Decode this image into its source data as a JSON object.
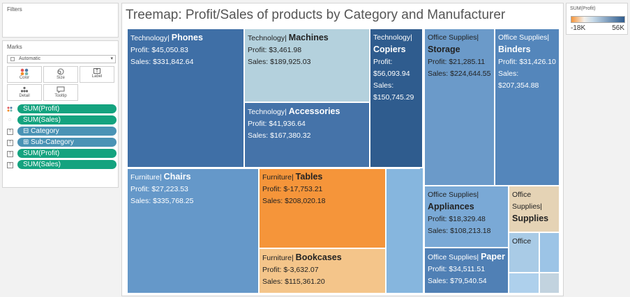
{
  "filters": {
    "title": "Filters"
  },
  "marks": {
    "title": "Marks",
    "mark_type": "Automatic",
    "buttons": {
      "color": "Color",
      "size": "Size",
      "label": "Label",
      "detail": "Detail",
      "tooltip": "Tooltip"
    },
    "label_button_glyph": "T",
    "pills": [
      {
        "label": "SUM(Profit)",
        "style": "green",
        "icon": "color-dots-icon"
      },
      {
        "label": "SUM(Sales)",
        "style": "green",
        "icon": "size-icon"
      },
      {
        "label": "⊟ Category",
        "style": "blue",
        "icon": "label-icon"
      },
      {
        "label": "⊞ Sub-Category",
        "style": "blue",
        "icon": "label-icon"
      },
      {
        "label": "SUM(Profit)",
        "style": "green",
        "icon": "label-icon"
      },
      {
        "label": "SUM(Sales)",
        "style": "green",
        "icon": "label-icon"
      }
    ]
  },
  "chart": {
    "title": "Treemap: Profit/Sales of products by Category and Manufacturer",
    "tiles": [
      {
        "category": "Technology|",
        "subcategory": "Phones",
        "profit": "Profit: $45,050.83",
        "sales": "Sales: $331,842.64",
        "color": "#3f6fa6",
        "text": "light",
        "layout": "inline"
      },
      {
        "category": "Technology|",
        "subcategory": "Machines",
        "profit": "Profit: $3,461.98",
        "sales": "Sales: $189,925.03",
        "color": "#b4d1dd",
        "text": "dark",
        "layout": "inline"
      },
      {
        "category": "Technology|",
        "subcategory": "Accessories",
        "profit": "Profit: $41,936.64",
        "sales": "Sales: $167,380.32",
        "color": "#4573a9",
        "text": "light",
        "layout": "inline"
      },
      {
        "category": "Technology|",
        "subcategory": "Copiers",
        "profit": "Profit:",
        "profit2": "$56,093.94",
        "sales": "Sales:",
        "sales2": "$150,745.29",
        "color": "#2f5c8e",
        "text": "light",
        "layout": "stacked"
      },
      {
        "category": "Office Supplies|",
        "subcategory": "Storage",
        "profit": "Profit: $21,285.11",
        "sales": "Sales: $224,644.55",
        "color": "#6b9ac9",
        "text": "dark",
        "layout": "stacked2"
      },
      {
        "category": "Office Supplies|",
        "subcategory": "Binders",
        "profit": "Profit: $31,426.10",
        "sales": "Sales:",
        "sales2": "$207,354.88",
        "color": "#5486bb",
        "text": "light",
        "layout": "stacked2"
      },
      {
        "category": "Furniture|",
        "subcategory": "Chairs",
        "profit": "Profit: $27,223.53",
        "sales": "Sales: $335,768.25",
        "color": "#6598c9",
        "text": "light",
        "layout": "inline"
      },
      {
        "category": "Furniture|",
        "subcategory": "Tables",
        "profit": "Profit: $-17,753.21",
        "sales": "Sales: $208,020.18",
        "color": "#f5953a",
        "text": "dark",
        "layout": "inline"
      },
      {
        "category": "Furniture|",
        "subcategory": "Bookcases",
        "profit": "Profit: $-3,632.07",
        "sales": "Sales: $115,361.20",
        "color": "#f4c58a",
        "text": "dark",
        "layout": "inline"
      },
      {
        "category": "",
        "subcategory": "",
        "color": "#86b6de",
        "text": "dark",
        "layout": "none"
      },
      {
        "category": "Office Supplies|",
        "subcategory": "Appliances",
        "profit": "Profit: $18,329.48",
        "sales": "Sales: $108,213.18",
        "color": "#7aa9d6",
        "text": "dark",
        "layout": "stacked2"
      },
      {
        "category": "Office",
        "subcategory": "Supplies",
        "category2": "Supplies|",
        "color": "#e5d3b5",
        "text": "dark",
        "layout": "supplies"
      },
      {
        "category": "Office",
        "subcategory": "",
        "color": "#a9cbe6",
        "text": "dark",
        "layout": "office"
      },
      {
        "category": "",
        "subcategory": "",
        "color": "#9cc4e6",
        "text": "dark",
        "layout": "none"
      },
      {
        "category": "Office Supplies|",
        "subcategory": "Paper",
        "profit": "Profit: $34,511.51",
        "sales": "Sales: $79,540.54",
        "color": "#5080b5",
        "text": "light",
        "layout": "inline"
      },
      {
        "category": "",
        "subcategory": "",
        "color": "#aed0ec",
        "text": "dark",
        "layout": "none"
      },
      {
        "category": "",
        "subcategory": "",
        "color": "#c2d3df",
        "text": "dark",
        "layout": "none"
      }
    ]
  },
  "legend": {
    "title": "SUM(Profit)",
    "min": "-18K",
    "max": "56K",
    "low_color": "#f5953a",
    "high_color": "#2f5c8e"
  }
}
